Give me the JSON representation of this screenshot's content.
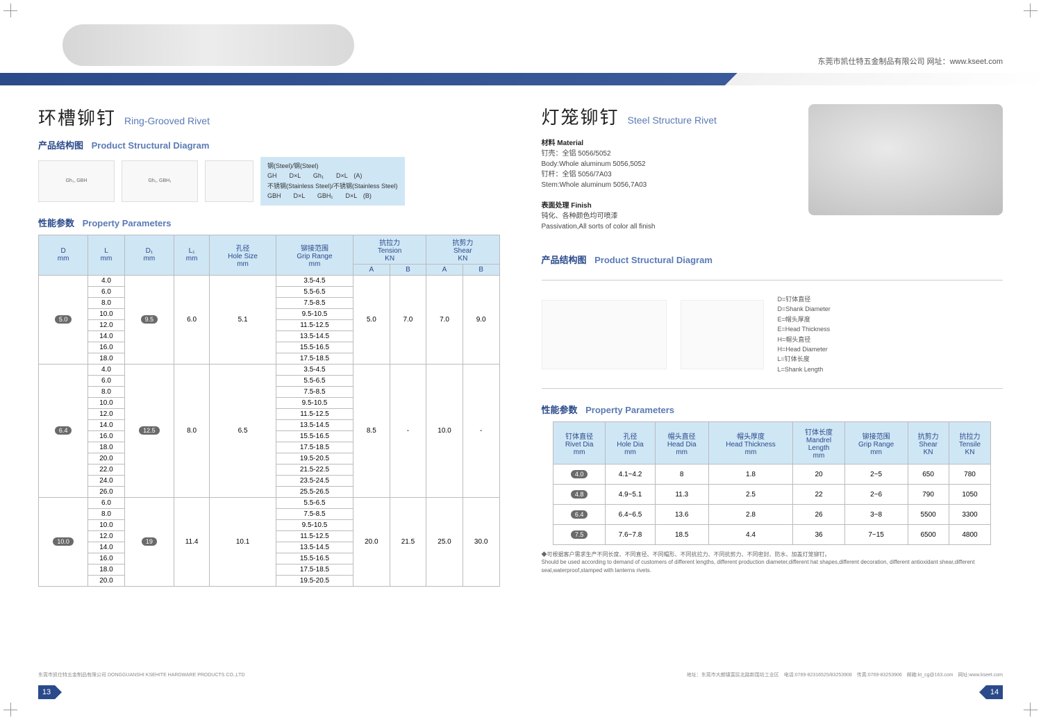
{
  "header": {
    "company_url": "东莞市凯仕特五金制品有限公司 网址：www.kseet.com"
  },
  "left": {
    "title_cn": "环槽铆钉",
    "title_en": "Ring-Grooved Rivet",
    "section1": "产品结构图",
    "section1_en": "Product Structural Diagram",
    "legend": {
      "line1": "钢(Steel)/钢(Steel)",
      "line2": "GH　　D×L　　Gh₁　　D×L　(A)",
      "line3": "不锈钢(Stainless Steel)/不锈钢(Stainless Steel)",
      "line4": "GBH　　D×L　　GBH₁　　D×L　(B)"
    },
    "diagram_label1": "Gh₁, GBH",
    "diagram_label2": "Gh₁, GBH₁",
    "section2": "性能参数",
    "section2_en": "Property Parameters",
    "table": {
      "columns": [
        "D\nmm",
        "L\nmm",
        "D₁\nmm",
        "L₁\nmm",
        "孔径\nHole Size\nmm",
        "铆接范围\nGrip Range\nmm",
        "抗拉力\nTension\nKN",
        "抗剪力\nShear\nKN"
      ],
      "sub_columns": [
        "A",
        "B",
        "A",
        "B"
      ],
      "groups": [
        {
          "d": "5.0",
          "d1": "9.5",
          "l1": "6.0",
          "hole": "5.1",
          "lengths": [
            "4.0",
            "6.0",
            "8.0",
            "10.0",
            "12.0",
            "14.0",
            "16.0",
            "18.0"
          ],
          "grips": [
            "3.5-4.5",
            "5.5-6.5",
            "7.5-8.5",
            "9.5-10.5",
            "11.5-12.5",
            "13.5-14.5",
            "15.5-16.5",
            "17.5-18.5"
          ],
          "tA": "5.0",
          "tB": "7.0",
          "sA": "7.0",
          "sB": "9.0"
        },
        {
          "d": "6.4",
          "d1": "12.5",
          "l1": "8.0",
          "hole": "6.5",
          "lengths": [
            "4.0",
            "6.0",
            "8.0",
            "10.0",
            "12.0",
            "14.0",
            "16.0",
            "18.0",
            "20.0",
            "22.0",
            "24.0",
            "26.0"
          ],
          "grips": [
            "3.5-4.5",
            "5.5-6.5",
            "7.5-8.5",
            "9.5-10.5",
            "11.5-12.5",
            "13.5-14.5",
            "15.5-16.5",
            "17.5-18.5",
            "19.5-20.5",
            "21.5-22.5",
            "23.5-24.5",
            "25.5-26.5"
          ],
          "tA": "8.5",
          "tB": "-",
          "sA": "10.0",
          "sB": "-"
        },
        {
          "d": "10.0",
          "d1": "19",
          "l1": "11.4",
          "hole": "10.1",
          "lengths": [
            "6.0",
            "8.0",
            "10.0",
            "12.0",
            "14.0",
            "16.0",
            "18.0",
            "20.0"
          ],
          "grips": [
            "5.5-6.5",
            "7.5-8.5",
            "9.5-10.5",
            "11.5-12.5",
            "13.5-14.5",
            "15.5-16.5",
            "17.5-18.5",
            "19.5-20.5"
          ],
          "tA": "20.0",
          "tB": "21.5",
          "sA": "25.0",
          "sB": "30.0"
        }
      ]
    }
  },
  "right": {
    "title_cn": "灯笼铆钉",
    "title_en": "Steel Structure  Rivet",
    "material_label": "材料 Material",
    "material_body1": "钉壳：全铝 5056/5052",
    "material_body2": "Body:Whole aluminum 5056,5052",
    "material_stem1": "钉杆：全铝 5056/7A03",
    "material_stem2": "Stem:Whole aluminum 5056,7A03",
    "finish_label": "表面处理 Finish",
    "finish1": "钝化、各种颜色均可喷漆",
    "finish2": "Passivation,All sorts of color all finish",
    "section1": "产品结构图",
    "section1_en": "Product Structural Diagram",
    "struct_legend": {
      "l1": "D=钉体直径",
      "l2": "D=Shank Diameter",
      "l3": "E=帽头厚度",
      "l4": "E=Head Thickness",
      "l5": "H=帽头直径",
      "l6": "H=Head Diameter",
      "l7": "L=钉体长度",
      "l8": "L=Shank Length"
    },
    "section2": "性能参数",
    "section2_en": "Property Parameters",
    "table2": {
      "columns": [
        "钉体直径\nRivet Dia\nmm",
        "孔径\nHole Dia\nmm",
        "帽头直径\nHead Dia\nmm",
        "帽头厚度\nHead Thickness\nmm",
        "钉体长度\nMandrel\nLength\nmm",
        "铆接范围\nGrip Range\nmm",
        "抗剪力\nShear\nKN",
        "抗拉力\nTensile\nKN"
      ],
      "rows": [
        [
          "4.0",
          "4.1~4.2",
          "8",
          "1.8",
          "20",
          "2~5",
          "650",
          "780"
        ],
        [
          "4.8",
          "4.9~5.1",
          "11.3",
          "2.5",
          "22",
          "2~6",
          "790",
          "1050"
        ],
        [
          "6.4",
          "6.4~6.5",
          "13.6",
          "2.8",
          "26",
          "3~8",
          "5500",
          "3300"
        ],
        [
          "7.5",
          "7.6~7.8",
          "18.5",
          "4.4",
          "36",
          "7~15",
          "6500",
          "4800"
        ]
      ]
    },
    "footnote1": "◆可根据客户需求生产不同长度、不同直径、不同帽形、不同抗拉力、不同抗剪力、不同密封、防水、加盖灯笼铆钉。",
    "footnote2": "Should be used according to demand of customers of different lengths, different production diameter,different hat shapes,different decoration, different antioxidant shear,different seal,waterproof,stamped with lanterns rivets."
  },
  "footer": {
    "left": "东莞市凯仕特五金制品有限公司 DONGGUANSHI KSEHITE HARDWARE PRODUCTS CO.,LTD",
    "right": "地址：东莞市大朗镇富民北路新围坊工业区　电话:0769-82316525/83253908　传真:0769-83253906　邮箱:kt_cg@163.com　网址:www.kseet.com",
    "page_left": "13",
    "page_right": "14"
  },
  "colors": {
    "primary": "#2a4a8a",
    "accent": "#5a7ab5",
    "header_bg": "#cfe6f5"
  }
}
